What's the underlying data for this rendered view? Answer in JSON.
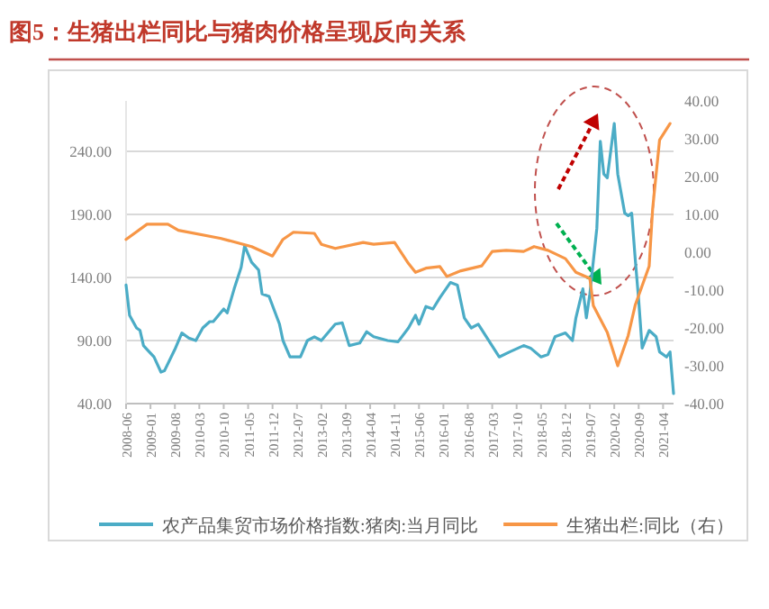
{
  "chart_data": {
    "type": "line",
    "title": "图5：生猪出栏同比与猪肉价格呈现反向关系",
    "xlim": [
      "2008-06",
      "2021-07"
    ],
    "xticks": [
      "2008-06",
      "2009-01",
      "2009-08",
      "2010-03",
      "2010-10",
      "2011-05",
      "2011-12",
      "2012-07",
      "2013-02",
      "2013-09",
      "2014-04",
      "2014-11",
      "2015-06",
      "2016-01",
      "2016-08",
      "2017-03",
      "2017-10",
      "2018-05",
      "2018-12",
      "2019-07",
      "2020-02",
      "2020-09",
      "2021-04"
    ],
    "ylim": [
      40,
      280
    ],
    "yticks": [
      {
        "value": 40,
        "label": "40.00"
      },
      {
        "value": 90,
        "label": "90.00"
      },
      {
        "value": 140,
        "label": "140.00"
      },
      {
        "value": 190,
        "label": "190.00"
      },
      {
        "value": 240,
        "label": "240.00"
      }
    ],
    "y2lim": [
      -40,
      40
    ],
    "y2ticks": [
      {
        "value": -40,
        "label": "-40.00"
      },
      {
        "value": -30,
        "label": "-30.00"
      },
      {
        "value": -20,
        "label": "-20.00"
      },
      {
        "value": -10,
        "label": "-10.00"
      },
      {
        "value": 0,
        "label": "0.00"
      },
      {
        "value": 10,
        "label": "10.00"
      },
      {
        "value": 20,
        "label": "20.00"
      },
      {
        "value": 30,
        "label": "30.00"
      },
      {
        "value": 40,
        "label": "40.00"
      }
    ],
    "grid": "y",
    "legend": "bottom",
    "series": [
      {
        "name": "农产品集贸市场价格指数:猪肉:当月同比",
        "color": "#4bacc6",
        "x": [
          "2008-06",
          "2008-07",
          "2008-09",
          "2008-10",
          "2008-11",
          "2008-12",
          "2009-02",
          "2009-04",
          "2009-05",
          "2009-08",
          "2009-10",
          "2009-12",
          "2010-02",
          "2010-04",
          "2010-06",
          "2010-07",
          "2010-10",
          "2010-11",
          "2011-01",
          "2011-03",
          "2011-04",
          "2011-06",
          "2011-08",
          "2011-09",
          "2011-11",
          "2012-02",
          "2012-03",
          "2012-05",
          "2012-08",
          "2012-10",
          "2012-12",
          "2013-02",
          "2013-06",
          "2013-08",
          "2013-10",
          "2014-01",
          "2014-03",
          "2014-05",
          "2014-09",
          "2014-12",
          "2015-03",
          "2015-05",
          "2015-06",
          "2015-08",
          "2015-10",
          "2015-12",
          "2016-03",
          "2016-05",
          "2016-07",
          "2016-09",
          "2016-11",
          "2017-05",
          "2017-08",
          "2017-12",
          "2018-02",
          "2018-05",
          "2018-07",
          "2018-09",
          "2018-12",
          "2019-02",
          "2019-03",
          "2019-05",
          "2019-06",
          "2019-07",
          "2019-09",
          "2019-10",
          "2019-11",
          "2019-12",
          "2020-02",
          "2020-03",
          "2020-05",
          "2020-06",
          "2020-07",
          "2020-08",
          "2020-09",
          "2020-10",
          "2020-12",
          "2021-02",
          "2021-03",
          "2021-05",
          "2021-06",
          "2021-07"
        ],
        "values": [
          134,
          110,
          100,
          98,
          86,
          83,
          77,
          65,
          66,
          83,
          96,
          92,
          90,
          100,
          105,
          105,
          115,
          112,
          131,
          148,
          165,
          152,
          146,
          127,
          125,
          103,
          90,
          77,
          77,
          90,
          93,
          90,
          103,
          104,
          86,
          88,
          97,
          93,
          90,
          89,
          100,
          110,
          103,
          117,
          115,
          124,
          136,
          134,
          108,
          100,
          103,
          77,
          81,
          86,
          84,
          77,
          79,
          93,
          96,
          90,
          108,
          131,
          108,
          127,
          179,
          248,
          222,
          219,
          262,
          222,
          191,
          189,
          191,
          155,
          122,
          84,
          98,
          93,
          81,
          77,
          81,
          48
        ]
      },
      {
        "name": "生猪出栏:同比（右）",
        "color": "#f79646",
        "axis": "y2",
        "x": [
          "2008-06",
          "2008-12",
          "2009-06",
          "2009-09",
          "2010-09",
          "2011-06",
          "2011-12",
          "2012-03",
          "2012-06",
          "2012-12",
          "2013-02",
          "2013-06",
          "2014-02",
          "2014-05",
          "2014-11",
          "2015-03",
          "2015-05",
          "2015-08",
          "2015-12",
          "2016-02",
          "2016-06",
          "2016-12",
          "2017-03",
          "2017-07",
          "2017-12",
          "2018-03",
          "2018-07",
          "2018-12",
          "2019-03",
          "2019-07",
          "2019-08",
          "2019-12",
          "2020-03",
          "2020-06",
          "2020-08",
          "2020-12",
          "2021-01",
          "2021-03",
          "2021-06"
        ],
        "values": [
          3.4,
          7.4,
          7.4,
          5.8,
          3.7,
          1.5,
          -1.0,
          3.4,
          5.3,
          5.0,
          2.1,
          1.0,
          2.6,
          2.1,
          2.6,
          -3.0,
          -5.3,
          -4.2,
          -3.8,
          -6.4,
          -4.9,
          -3.6,
          0.2,
          0.5,
          0.2,
          1.5,
          0.5,
          -1.7,
          -5.3,
          -6.9,
          -14.1,
          -21.2,
          -30,
          -22,
          -14,
          -3.7,
          11.4,
          29.7,
          34
        ]
      }
    ]
  }
}
